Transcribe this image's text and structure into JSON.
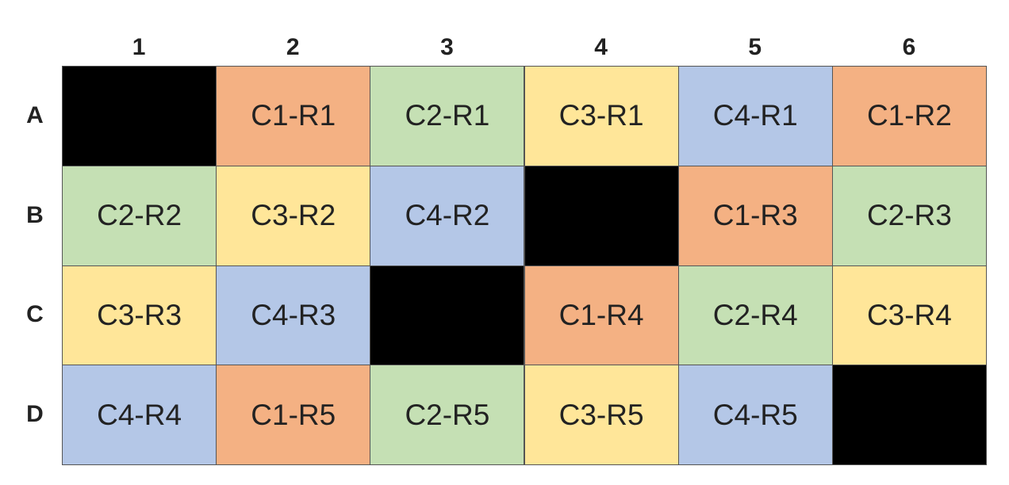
{
  "table": {
    "columns": [
      "1",
      "2",
      "3",
      "4",
      "5",
      "6"
    ],
    "rows": [
      {
        "label": "A",
        "cells": [
          {
            "color": "#000000"
          },
          {
            "label": "C1-R1",
            "color": "#f4b183"
          },
          {
            "label": "C2-R1",
            "color": "#c5e0b4"
          },
          {
            "label": "C3-R1",
            "color": "#ffe699"
          },
          {
            "label": "C4-R1",
            "color": "#b4c7e7"
          },
          {
            "label": "C1-R2",
            "color": "#f4b183"
          }
        ]
      },
      {
        "label": "B",
        "cells": [
          {
            "label": "C2-R2",
            "color": "#c5e0b4"
          },
          {
            "label": "C3-R2",
            "color": "#ffe699"
          },
          {
            "label": "C4-R2",
            "color": "#b4c7e7"
          },
          {
            "color": "#000000"
          },
          {
            "label": "C1-R3",
            "color": "#f4b183"
          },
          {
            "label": "C2-R3",
            "color": "#c5e0b4"
          }
        ]
      },
      {
        "label": "C",
        "cells": [
          {
            "label": "C3-R3",
            "color": "#ffe699"
          },
          {
            "label": "C4-R3",
            "color": "#b4c7e7"
          },
          {
            "color": "#000000"
          },
          {
            "label": "C1-R4",
            "color": "#f4b183"
          },
          {
            "label": "C2-R4",
            "color": "#c5e0b4"
          },
          {
            "label": "C3-R4",
            "color": "#ffe699"
          }
        ]
      },
      {
        "label": "D",
        "cells": [
          {
            "label": "C4-R4",
            "color": "#b4c7e7"
          },
          {
            "label": "C1-R5",
            "color": "#f4b183"
          },
          {
            "label": "C2-R5",
            "color": "#c5e0b4"
          },
          {
            "label": "C3-R5",
            "color": "#ffe699"
          },
          {
            "label": "C4-R5",
            "color": "#b4c7e7"
          },
          {
            "color": "#000000"
          }
        ]
      }
    ]
  }
}
